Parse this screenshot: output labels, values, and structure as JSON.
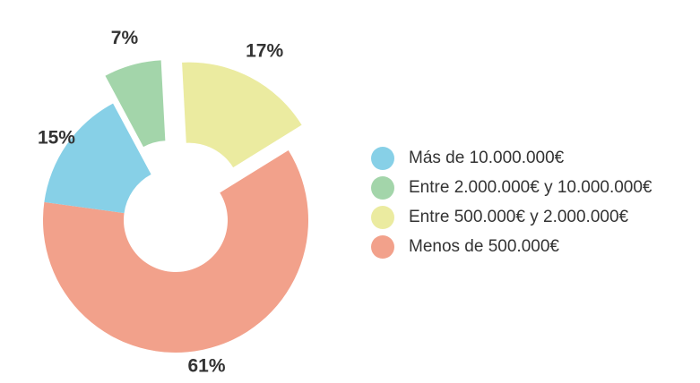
{
  "chart_data": {
    "type": "pie",
    "title": "",
    "categories": [
      "Más de 10.000.000€",
      "Entre 2.000.000€ y 10.000.000€",
      "Entre 500.000€ y 2.000.000€",
      "Menos de 500.000€"
    ],
    "values": [
      15,
      7,
      17,
      61
    ],
    "labels": [
      "15%",
      "7%",
      "17%",
      "61%"
    ],
    "colors": [
      "#87d0e7",
      "#a3d5aa",
      "#ebeba0",
      "#f2a18b"
    ],
    "donut": true,
    "exploded": [
      "Entre 2.000.000€ y 10.000.000€",
      "Entre 500.000€ y 2.000.000€"
    ],
    "legend_position": "right"
  }
}
